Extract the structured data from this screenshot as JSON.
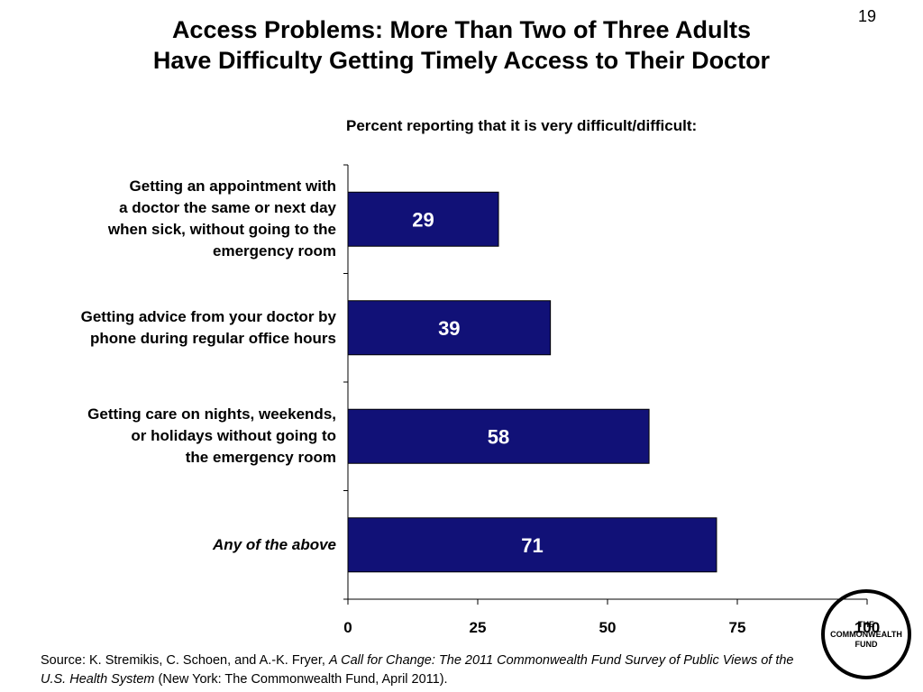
{
  "slide_number": "19",
  "title_lines": [
    "Access Problems: More Than Two of Three Adults",
    "Have Difficulty Getting Timely Access to Their Doctor"
  ],
  "subtitle": "Percent reporting that it is very difficult/difficult:",
  "colors": {
    "bar": "#111177",
    "axis": "#000000",
    "bar_label": "#ffffff"
  },
  "chart_data": {
    "type": "bar",
    "orientation": "horizontal",
    "categories": [
      "Getting an appointment with a doctor the same or next day when sick, without going to the emergency room",
      "Getting advice from your doctor by phone during regular office hours",
      "Getting care on nights, weekends, or holidays without going to the emergency room",
      "Any of the above"
    ],
    "values": [
      29,
      39,
      58,
      71
    ],
    "xlim": [
      0,
      100
    ],
    "x_ticks": [
      "0",
      "25",
      "50",
      "75",
      "100"
    ],
    "grid": false,
    "legend": false,
    "data_labels": true
  },
  "category_labels": [
    {
      "lines": [
        "Getting an appointment with",
        "a doctor the same or next day",
        "when sick, without going to the",
        "emergency room"
      ],
      "italic": false
    },
    {
      "lines": [
        "Getting advice from your doctor by",
        "phone during regular office hours"
      ],
      "italic": false
    },
    {
      "lines": [
        "Getting care on nights, weekends,",
        "or holidays without going to",
        "the emergency room"
      ],
      "italic": false
    },
    {
      "lines": [
        "Any of the above"
      ],
      "italic": true
    }
  ],
  "source": {
    "prefix": "Source: K. Stremikis, C. Schoen, and A.-K. Fryer, ",
    "title_italic": "A Call for Change: The 2011 Commonwealth Fund Survey of Public Views of the U.S. Health System",
    "suffix": " (New York: The Commonwealth Fund, April 2011)."
  },
  "logo": {
    "lines": [
      "THE",
      "COMMONWEALTH",
      "FUND"
    ]
  }
}
